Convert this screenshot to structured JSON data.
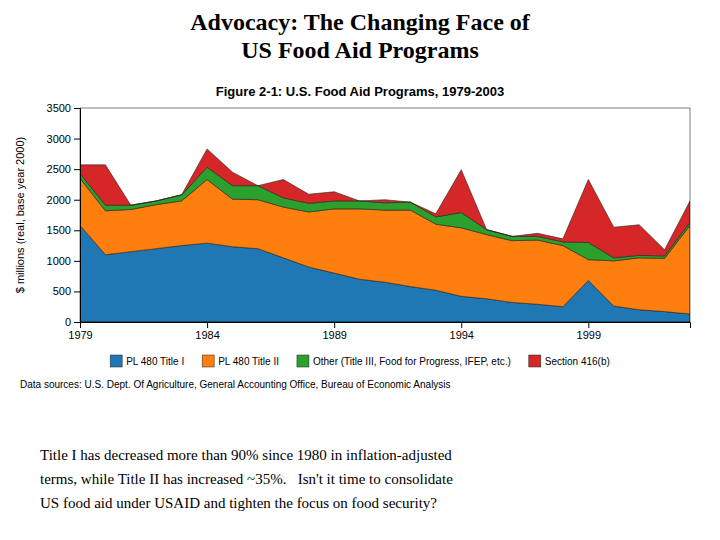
{
  "title": [
    "Advocacy: The Changing Face of",
    "US Food Aid Programs"
  ],
  "body_text": [
    "Title I has decreased more than 90% since 1980 in inflation-adjusted",
    "terms, while Title II has increased ~35%.   Isn't it time to consolidate",
    "US food aid under USAID and tighten the focus on food security?"
  ],
  "chart_data": {
    "type": "area",
    "stacked": true,
    "title": "Figure 2-1: U.S. Food Aid Programs, 1979-2003",
    "y_label": "$ millions (real, base year 2000)",
    "annotations": [
      "Data sources: U.S. Dept. Of Agriculture, General Accounting Office, Bureau of Economic Analysis"
    ],
    "x": [
      1979,
      1980,
      1981,
      1982,
      1983,
      1984,
      1985,
      1986,
      1987,
      1988,
      1989,
      1990,
      1991,
      1992,
      1993,
      1994,
      1995,
      1996,
      1997,
      1998,
      1999,
      2000,
      2001,
      2002,
      2003
    ],
    "series": [
      {
        "name": "PL 480 Title I",
        "values": [
          1580,
          1100,
          1150,
          1200,
          1250,
          1290,
          1230,
          1200,
          1050,
          900,
          800,
          700,
          650,
          580,
          520,
          420,
          380,
          320,
          290,
          250,
          680,
          260,
          200,
          170,
          130
        ]
      },
      {
        "name": "PL 480 Title II",
        "values": [
          770,
          720,
          690,
          720,
          730,
          1040,
          780,
          800,
          830,
          900,
          1050,
          1150,
          1180,
          1250,
          1080,
          1120,
          1050,
          1010,
          1050,
          1000,
          340,
          740,
          850,
          870,
          1450
        ]
      },
      {
        "name": "Other (Title III, Food for Progress, IFEP, etc.)",
        "values": [
          80,
          90,
          70,
          60,
          100,
          200,
          220,
          230,
          150,
          140,
          130,
          130,
          120,
          130,
          120,
          250,
          80,
          70,
          60,
          60,
          280,
          50,
          40,
          40,
          50
        ]
      },
      {
        "name": "Section 416(b)",
        "values": [
          140,
          660,
          0,
          0,
          0,
          300,
          220,
          0,
          300,
          150,
          150,
          0,
          50,
          0,
          50,
          700,
          0,
          0,
          50,
          50,
          1030,
          500,
          500,
          100,
          350
        ]
      }
    ],
    "xlim": [
      1979,
      2003
    ],
    "xticks": [
      1979,
      1984,
      1989,
      1994,
      1999
    ],
    "ylim": [
      0,
      3500
    ],
    "yticks": [
      0,
      500,
      1000,
      1500,
      2000,
      2500,
      3000,
      3500
    ],
    "grid": false
  }
}
